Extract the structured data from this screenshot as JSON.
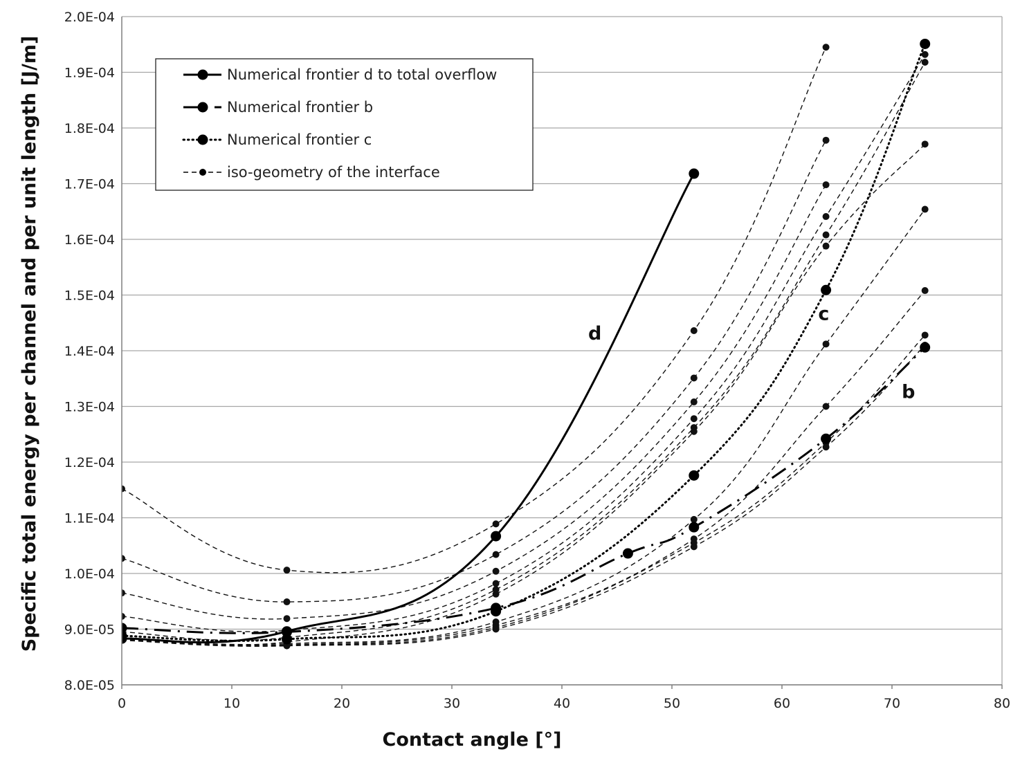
{
  "chart_data": {
    "type": "line",
    "xlabel": "Contact angle [°]",
    "ylabel": "Specific total energy per channel and per unit length [J/m]",
    "xlim": [
      0,
      80
    ],
    "ylim": [
      8e-05,
      0.0002
    ],
    "x_ticks": [
      "0",
      "10",
      "20",
      "30",
      "40",
      "50",
      "60",
      "70",
      "80"
    ],
    "y_ticks": [
      "8.0E-05",
      "9.0E-05",
      "1.0E-04",
      "1.1E-04",
      "1.2E-04",
      "1.3E-04",
      "1.4E-04",
      "1.5E-04",
      "1.6E-04",
      "1.7E-04",
      "1.8E-04",
      "1.9E-04",
      "2.0E-04"
    ],
    "grid": "horizontal",
    "legend_position": "top-left",
    "series": [
      {
        "name": "Numerical frontier d to total overflow",
        "style": "solid",
        "x": [
          0,
          15,
          34,
          52
        ],
        "y": [
          8.83e-05,
          8.96e-05,
          0.0001067,
          0.0001718
        ]
      },
      {
        "name": "Numerical frontier b",
        "style": "longdash-dot",
        "x": [
          0,
          15,
          34,
          46,
          52,
          64,
          73
        ],
        "y": [
          9.02e-05,
          8.95e-05,
          9.38e-05,
          0.0001036,
          0.0001083,
          0.0001242,
          0.0001406
        ]
      },
      {
        "name": "Numerical frontier c",
        "style": "dotted",
        "x": [
          0,
          15,
          34,
          52,
          64,
          73
        ],
        "y": [
          8.88e-05,
          8.82e-05,
          9.32e-05,
          0.0001176,
          0.0001509,
          0.0001951
        ]
      },
      {
        "name": "iso-geometry of the interface",
        "style": "dashed",
        "curves": [
          {
            "x": [
              0,
              15,
              34,
              52,
              64
            ],
            "y": [
              0.0001152,
              0.0001006,
              0.0001089,
              0.0001436,
              0.0001945
            ]
          },
          {
            "x": [
              0,
              15,
              34,
              52,
              64
            ],
            "y": [
              0.0001027,
              9.49e-05,
              0.0001034,
              0.0001351,
              0.0001778
            ]
          },
          {
            "x": [
              0,
              15,
              34,
              52,
              64
            ],
            "y": [
              9.65e-05,
              9.19e-05,
              0.0001004,
              0.0001308,
              0.0001698
            ]
          },
          {
            "x": [
              0,
              15,
              34,
              52,
              64,
              73
            ],
            "y": [
              9.23e-05,
              8.98e-05,
              9.82e-05,
              0.0001278,
              0.0001641,
              0.0001932
            ]
          },
          {
            "x": [
              0,
              15,
              34,
              52,
              64,
              73
            ],
            "y": [
              8.95e-05,
              8.85e-05,
              9.71e-05,
              0.0001262,
              0.0001608,
              0.0001918
            ]
          },
          {
            "x": [
              0,
              15,
              34,
              52,
              64,
              73
            ],
            "y": [
              8.85e-05,
              8.77e-05,
              9.63e-05,
              0.0001255,
              0.0001588,
              0.0001771
            ]
          },
          {
            "x": [
              0,
              15,
              34,
              52,
              64,
              73
            ],
            "y": [
              8.83e-05,
              8.74e-05,
              9.13e-05,
              0.0001097,
              0.0001412,
              0.0001654
            ]
          },
          {
            "x": [
              0,
              15,
              34,
              52,
              64,
              73
            ],
            "y": [
              8.82e-05,
              8.72e-05,
              9.07e-05,
              0.0001062,
              0.00013,
              0.0001508
            ]
          },
          {
            "x": [
              0,
              15,
              34,
              52,
              64,
              73
            ],
            "y": [
              8.81e-05,
              8.71e-05,
              9.03e-05,
              0.0001055,
              0.0001235,
              0.0001428
            ]
          },
          {
            "x": [
              0,
              15,
              34,
              52,
              64,
              73
            ],
            "y": [
              8.8e-05,
              8.7e-05,
              9e-05,
              0.0001048,
              0.0001227,
              0.000141
            ]
          }
        ]
      }
    ],
    "annotations": [
      {
        "text": "d",
        "x": 43.0,
        "y": 0.000142
      },
      {
        "text": "c",
        "x": 63.8,
        "y": 0.0001455
      },
      {
        "text": "b",
        "x": 71.5,
        "y": 0.0001315
      }
    ]
  }
}
